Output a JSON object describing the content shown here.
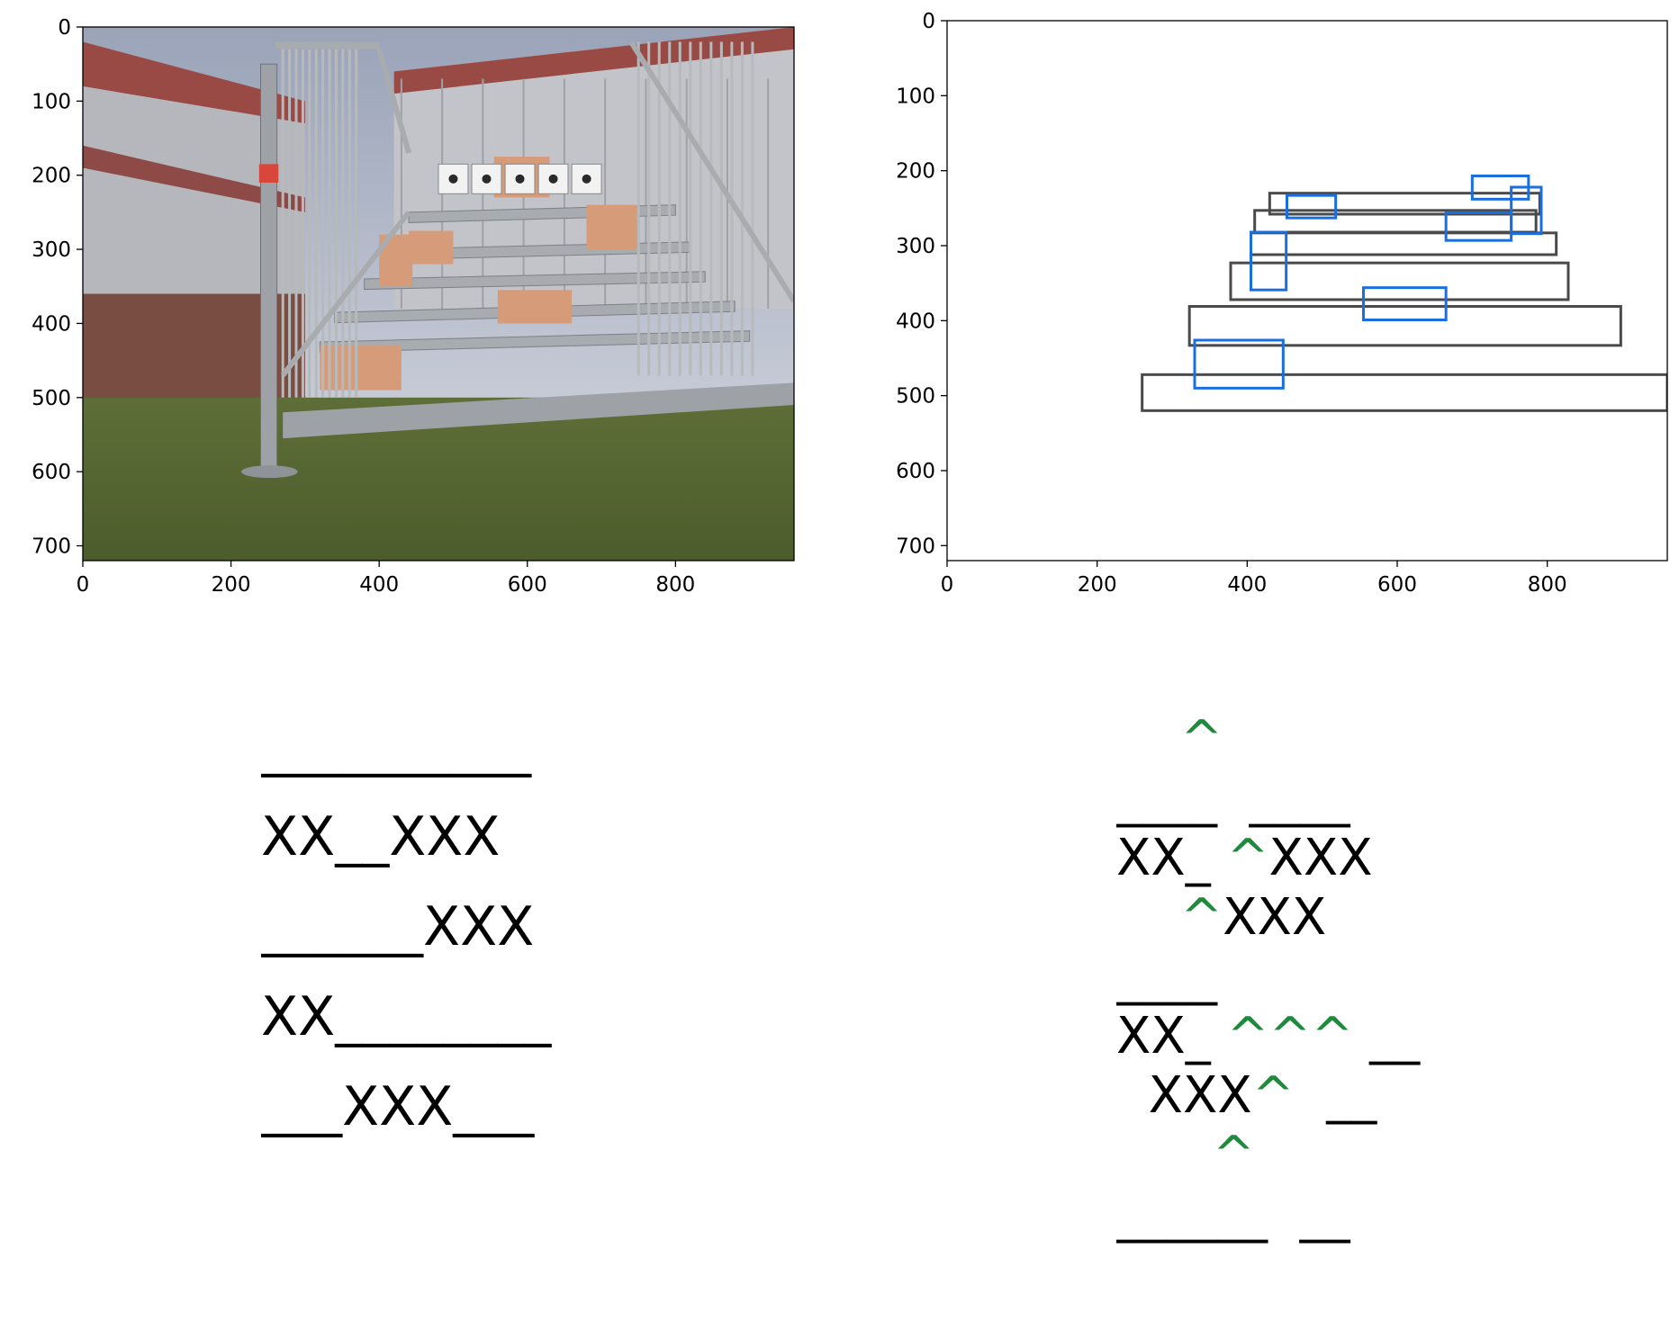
{
  "chart_data": [
    {
      "type": "image",
      "xlim": [
        0,
        960
      ],
      "ylim": [
        720,
        0
      ],
      "xticks": [
        "0",
        "200",
        "400",
        "600",
        "800"
      ],
      "yticks": [
        "0",
        "100",
        "200",
        "300",
        "400",
        "500",
        "600",
        "700"
      ],
      "image": "photo-stairs",
      "grid": false
    },
    {
      "type": "boxes",
      "xlim": [
        0,
        960
      ],
      "ylim": [
        720,
        0
      ],
      "xticks": [
        "0",
        "200",
        "400",
        "600",
        "800"
      ],
      "yticks": [
        "0",
        "100",
        "200",
        "300",
        "400",
        "500",
        "600",
        "700"
      ],
      "grid": false,
      "colors": {
        "steps": "#4a4a4a",
        "objects": "#1a6fe0"
      },
      "steps": [
        {
          "x1": 430,
          "y1": 230,
          "x2": 790,
          "y2": 258
        },
        {
          "x1": 410,
          "y1": 253,
          "x2": 785,
          "y2": 282
        },
        {
          "x1": 405,
          "y1": 283,
          "x2": 812,
          "y2": 312
        },
        {
          "x1": 378,
          "y1": 323,
          "x2": 828,
          "y2": 372
        },
        {
          "x1": 323,
          "y1": 381,
          "x2": 898,
          "y2": 433
        },
        {
          "x1": 260,
          "y1": 472,
          "x2": 960,
          "y2": 520
        }
      ],
      "objects": [
        {
          "x1": 700,
          "y1": 207,
          "x2": 775,
          "y2": 238
        },
        {
          "x1": 453,
          "y1": 233,
          "x2": 518,
          "y2": 263
        },
        {
          "x1": 752,
          "y1": 222,
          "x2": 792,
          "y2": 284
        },
        {
          "x1": 665,
          "y1": 256,
          "x2": 752,
          "y2": 293
        },
        {
          "x1": 405,
          "y1": 282,
          "x2": 452,
          "y2": 359
        },
        {
          "x1": 555,
          "y1": 356,
          "x2": 665,
          "y2": 399
        },
        {
          "x1": 330,
          "y1": 426,
          "x2": 448,
          "y2": 490
        }
      ]
    },
    {
      "type": "table",
      "rows": [
        "__________",
        "XX__XXX",
        "______XXX",
        "XX________",
        "___XXX___",
        "",
        "__________"
      ]
    },
    {
      "type": "table",
      "rows": [
        "    ^     ",
        "____  ____",
        "XX_ ^XXX  ",
        "    ^XXX  ",
        "____      ",
        "XX_ ^^^ __",
        "  XXX^  __",
        "      ^   ",
        "______  __"
      ]
    }
  ]
}
